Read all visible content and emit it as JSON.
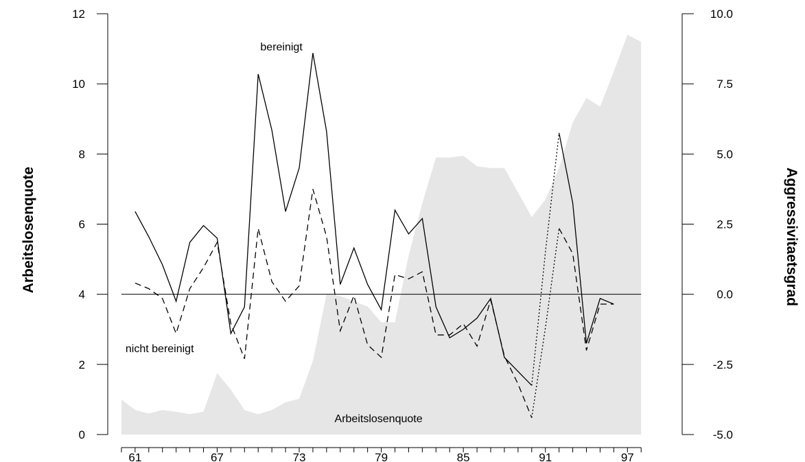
{
  "chart_data": {
    "type": "line",
    "ylabel_left": "Arbeitslosenquote",
    "ylabel_right": "Aggressivitaetsgrad",
    "xlim": [
      1959,
      2001
    ],
    "ylim_left": [
      0,
      12
    ],
    "ylim_right": [
      -5.0,
      10.0
    ],
    "x_ticks": [
      {
        "value": 1961,
        "label": "61"
      },
      {
        "value": 1967,
        "label": "67"
      },
      {
        "value": 1973,
        "label": "73"
      },
      {
        "value": 1979,
        "label": "79"
      },
      {
        "value": 1985,
        "label": "85"
      },
      {
        "value": 1991,
        "label": "91"
      },
      {
        "value": 1997,
        "label": "97"
      }
    ],
    "y_left_ticks": [
      "0",
      "2",
      "4",
      "6",
      "8",
      "10",
      "12"
    ],
    "y_right_ticks": [
      "-5.0",
      "-2.5",
      "0.0",
      "2.5",
      "5.0",
      "7.5",
      "10.0"
    ],
    "reference_line_right": 0.0,
    "annotations": [
      {
        "text": "bereinigt",
        "x": 1971.7,
        "y": 10.95
      },
      {
        "text": "nicht bereinigt",
        "x": 1962.8,
        "y": 2.35
      },
      {
        "text": "Arbeitslosenquote",
        "x": 1978.8,
        "y": 0.35
      }
    ],
    "series": [
      {
        "name": "Arbeitslosenquote",
        "axis": "left",
        "style": "area",
        "color": "#e6e6e6",
        "x": [
          1960,
          1961,
          1962,
          1963,
          1964,
          1965,
          1966,
          1967,
          1968,
          1969,
          1970,
          1971,
          1972,
          1973,
          1974,
          1975,
          1976,
          1977,
          1978,
          1979,
          1980,
          1981,
          1982,
          1983,
          1984,
          1985,
          1986,
          1987,
          1988,
          1989,
          1990,
          1991,
          1992,
          1993,
          1994,
          1995,
          1996,
          1997,
          1998
        ],
        "values": [
          1.0,
          0.7,
          0.6,
          0.7,
          0.65,
          0.58,
          0.65,
          1.75,
          1.28,
          0.7,
          0.58,
          0.7,
          0.92,
          1.02,
          2.1,
          4.0,
          3.95,
          3.8,
          3.65,
          3.2,
          3.2,
          5.1,
          6.6,
          7.9,
          7.9,
          7.95,
          7.65,
          7.6,
          7.6,
          6.9,
          6.2,
          6.7,
          7.6,
          8.9,
          9.6,
          9.35,
          10.35,
          11.4,
          11.2
        ]
      },
      {
        "name": "bereinigt",
        "axis": "right",
        "style": "solid",
        "color": "#000000",
        "x": [
          1961,
          1962,
          1963,
          1964,
          1965,
          1966,
          1967,
          1968,
          1969,
          1970,
          1971,
          1972,
          1973,
          1974,
          1975,
          1976,
          1977,
          1978,
          1979,
          1980,
          1981,
          1982,
          1983,
          1984,
          1985,
          1986,
          1987,
          1988,
          1989,
          1990
        ],
        "values": [
          2.95,
          2.05,
          1.05,
          -0.25,
          1.85,
          2.45,
          2.0,
          -1.4,
          -0.45,
          7.85,
          5.85,
          2.95,
          4.5,
          8.6,
          5.8,
          0.35,
          1.65,
          0.35,
          -0.55,
          3.0,
          2.15,
          2.7,
          -0.45,
          -1.55,
          -1.25,
          -0.85,
          -0.15,
          -2.25,
          -2.75,
          -3.25
        ]
      },
      {
        "name": "bereinigt",
        "axis": "right",
        "style": "solid",
        "color": "#000000",
        "x": [
          1992,
          1993,
          1994,
          1995,
          1996
        ],
        "values": [
          5.75,
          3.25,
          -1.75,
          -0.15,
          -0.35
        ]
      },
      {
        "name": "nicht bereinigt",
        "axis": "right",
        "style": "dashed",
        "color": "#000000",
        "x": [
          1961,
          1962,
          1963,
          1964,
          1965,
          1966,
          1967,
          1968,
          1969,
          1970,
          1971,
          1972,
          1973,
          1974,
          1975,
          1976,
          1977,
          1978,
          1979,
          1980,
          1981,
          1982,
          1983,
          1984,
          1985,
          1986,
          1987,
          1988,
          1989,
          1990
        ],
        "values": [
          0.4,
          0.2,
          -0.15,
          -1.4,
          0.2,
          0.95,
          1.85,
          -1.05,
          -2.3,
          2.35,
          0.45,
          -0.25,
          0.3,
          3.75,
          2.05,
          -1.3,
          -0.05,
          -1.8,
          -2.25,
          0.7,
          0.55,
          0.8,
          -1.45,
          -1.45,
          -1.05,
          -1.85,
          -0.2,
          -2.2,
          -3.2,
          -4.4
        ]
      },
      {
        "name": "nicht bereinigt",
        "axis": "right",
        "style": "dashed",
        "color": "#000000",
        "x": [
          1992,
          1993,
          1994,
          1995,
          1996
        ],
        "values": [
          2.35,
          1.45,
          -2.0,
          -0.35,
          -0.35
        ]
      },
      {
        "axis": "right",
        "style": "dotted",
        "color": "#000000",
        "x": [
          1990,
          1991,
          1992
        ],
        "values": [
          -4.4,
          -1.2,
          2.35
        ]
      },
      {
        "axis": "right",
        "style": "dotted",
        "color": "#000000",
        "x": [
          1990,
          1991,
          1992
        ],
        "values": [
          -3.25,
          1.5,
          5.75
        ]
      }
    ]
  }
}
